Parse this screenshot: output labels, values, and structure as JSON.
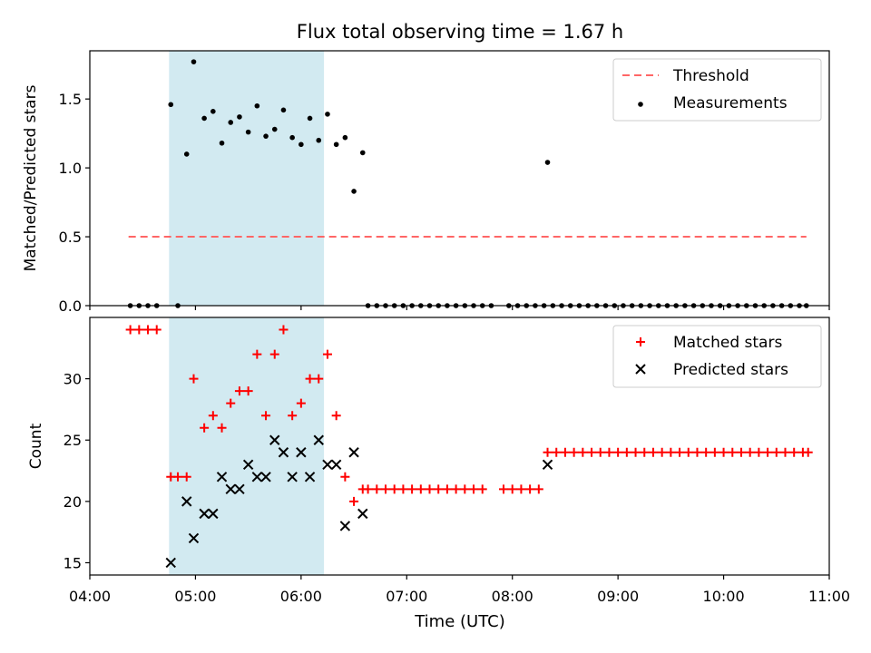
{
  "chart_data": {
    "type": "scatter",
    "title": "Flux total observing time = 1.67 h",
    "xlabel": "Time (UTC)",
    "xlim": [
      "04:00",
      "11:00"
    ],
    "xticks": [
      "04:00",
      "05:00",
      "06:00",
      "07:00",
      "08:00",
      "09:00",
      "10:00",
      "11:00"
    ],
    "shaded_interval": [
      "04:45",
      "06:13"
    ],
    "shade_color": "#add8e6",
    "panels": [
      {
        "ylabel": "Matched/Predicted stars",
        "ylim": [
          0,
          1.85
        ],
        "yticks": [
          "0.0",
          "0.5",
          "1.0",
          "1.5"
        ],
        "legend_position": "upper-right",
        "series": [
          {
            "name": "Threshold",
            "kind": "dashed-line",
            "color": "#ff6666",
            "points": [
              [
                "04:22",
                0.5
              ],
              [
                "10:47",
                0.5
              ]
            ]
          },
          {
            "name": "Measurements",
            "kind": "dot",
            "color": "#000000",
            "points": [
              [
                "04:23",
                0.0
              ],
              [
                "04:28",
                0.0
              ],
              [
                "04:33",
                0.0
              ],
              [
                "04:38",
                0.0
              ],
              [
                "04:46",
                1.46
              ],
              [
                "04:50",
                0.0
              ],
              [
                "04:55",
                1.1
              ],
              [
                "04:59",
                1.77
              ],
              [
                "05:05",
                1.36
              ],
              [
                "05:10",
                1.41
              ],
              [
                "05:15",
                1.18
              ],
              [
                "05:20",
                1.33
              ],
              [
                "05:25",
                1.37
              ],
              [
                "05:30",
                1.26
              ],
              [
                "05:35",
                1.45
              ],
              [
                "05:40",
                1.23
              ],
              [
                "05:45",
                1.28
              ],
              [
                "05:50",
                1.42
              ],
              [
                "05:55",
                1.22
              ],
              [
                "06:00",
                1.17
              ],
              [
                "06:05",
                1.36
              ],
              [
                "06:10",
                1.2
              ],
              [
                "06:15",
                1.39
              ],
              [
                "06:20",
                1.17
              ],
              [
                "06:25",
                1.22
              ],
              [
                "06:30",
                0.83
              ],
              [
                "06:35",
                1.11
              ],
              [
                "06:38",
                0.0
              ],
              [
                "06:43",
                0.0
              ],
              [
                "06:48",
                0.0
              ],
              [
                "06:53",
                0.0
              ],
              [
                "06:58",
                0.0
              ],
              [
                "07:03",
                0.0
              ],
              [
                "07:08",
                0.0
              ],
              [
                "07:13",
                0.0
              ],
              [
                "07:18",
                0.0
              ],
              [
                "07:23",
                0.0
              ],
              [
                "07:28",
                0.0
              ],
              [
                "07:33",
                0.0
              ],
              [
                "07:38",
                0.0
              ],
              [
                "07:43",
                0.0
              ],
              [
                "07:48",
                0.0
              ],
              [
                "07:58",
                0.0
              ],
              [
                "08:03",
                0.0
              ],
              [
                "08:08",
                0.0
              ],
              [
                "08:13",
                0.0
              ],
              [
                "08:18",
                0.0
              ],
              [
                "08:20",
                1.04
              ],
              [
                "08:23",
                0.0
              ],
              [
                "08:28",
                0.0
              ],
              [
                "08:33",
                0.0
              ],
              [
                "08:38",
                0.0
              ],
              [
                "08:43",
                0.0
              ],
              [
                "08:48",
                0.0
              ],
              [
                "08:53",
                0.0
              ],
              [
                "08:58",
                0.0
              ],
              [
                "09:03",
                0.0
              ],
              [
                "09:08",
                0.0
              ],
              [
                "09:13",
                0.0
              ],
              [
                "09:18",
                0.0
              ],
              [
                "09:23",
                0.0
              ],
              [
                "09:28",
                0.0
              ],
              [
                "09:33",
                0.0
              ],
              [
                "09:38",
                0.0
              ],
              [
                "09:43",
                0.0
              ],
              [
                "09:48",
                0.0
              ],
              [
                "09:53",
                0.0
              ],
              [
                "09:58",
                0.0
              ],
              [
                "10:03",
                0.0
              ],
              [
                "10:08",
                0.0
              ],
              [
                "10:13",
                0.0
              ],
              [
                "10:18",
                0.0
              ],
              [
                "10:23",
                0.0
              ],
              [
                "10:28",
                0.0
              ],
              [
                "10:33",
                0.0
              ],
              [
                "10:38",
                0.0
              ],
              [
                "10:43",
                0.0
              ],
              [
                "10:47",
                0.0
              ]
            ]
          }
        ]
      },
      {
        "ylabel": "Count",
        "ylim": [
          14,
          35
        ],
        "yticks": [
          "15",
          "20",
          "25",
          "30"
        ],
        "legend_position": "upper-right",
        "series": [
          {
            "name": "Matched stars",
            "kind": "plus",
            "color": "#ff0000",
            "points": [
              [
                "04:23",
                34
              ],
              [
                "04:28",
                34
              ],
              [
                "04:33",
                34
              ],
              [
                "04:38",
                34
              ],
              [
                "04:46",
                22
              ],
              [
                "04:50",
                22
              ],
              [
                "04:55",
                22
              ],
              [
                "04:59",
                30
              ],
              [
                "05:05",
                26
              ],
              [
                "05:10",
                27
              ],
              [
                "05:15",
                26
              ],
              [
                "05:20",
                28
              ],
              [
                "05:25",
                29
              ],
              [
                "05:30",
                29
              ],
              [
                "05:35",
                32
              ],
              [
                "05:40",
                27
              ],
              [
                "05:45",
                32
              ],
              [
                "05:50",
                34
              ],
              [
                "05:55",
                27
              ],
              [
                "06:00",
                28
              ],
              [
                "06:05",
                30
              ],
              [
                "06:10",
                30
              ],
              [
                "06:15",
                32
              ],
              [
                "06:20",
                27
              ],
              [
                "06:25",
                22
              ],
              [
                "06:30",
                20
              ],
              [
                "06:35",
                21
              ],
              [
                "06:38",
                21
              ],
              [
                "06:43",
                21
              ],
              [
                "06:48",
                21
              ],
              [
                "06:53",
                21
              ],
              [
                "06:58",
                21
              ],
              [
                "07:03",
                21
              ],
              [
                "07:08",
                21
              ],
              [
                "07:13",
                21
              ],
              [
                "07:18",
                21
              ],
              [
                "07:23",
                21
              ],
              [
                "07:28",
                21
              ],
              [
                "07:33",
                21
              ],
              [
                "07:38",
                21
              ],
              [
                "07:43",
                21
              ],
              [
                "07:55",
                21
              ],
              [
                "08:00",
                21
              ],
              [
                "08:05",
                21
              ],
              [
                "08:10",
                21
              ],
              [
                "08:15",
                21
              ],
              [
                "08:20",
                24
              ],
              [
                "08:25",
                24
              ],
              [
                "08:30",
                24
              ],
              [
                "08:35",
                24
              ],
              [
                "08:40",
                24
              ],
              [
                "08:45",
                24
              ],
              [
                "08:50",
                24
              ],
              [
                "08:55",
                24
              ],
              [
                "09:00",
                24
              ],
              [
                "09:05",
                24
              ],
              [
                "09:10",
                24
              ],
              [
                "09:15",
                24
              ],
              [
                "09:20",
                24
              ],
              [
                "09:25",
                24
              ],
              [
                "09:30",
                24
              ],
              [
                "09:35",
                24
              ],
              [
                "09:40",
                24
              ],
              [
                "09:45",
                24
              ],
              [
                "09:50",
                24
              ],
              [
                "09:55",
                24
              ],
              [
                "10:00",
                24
              ],
              [
                "10:05",
                24
              ],
              [
                "10:10",
                24
              ],
              [
                "10:15",
                24
              ],
              [
                "10:20",
                24
              ],
              [
                "10:25",
                24
              ],
              [
                "10:30",
                24
              ],
              [
                "10:35",
                24
              ],
              [
                "10:40",
                24
              ],
              [
                "10:45",
                24
              ],
              [
                "10:48",
                24
              ]
            ]
          },
          {
            "name": "Predicted stars",
            "kind": "x",
            "color": "#000000",
            "points": [
              [
                "04:46",
                15
              ],
              [
                "04:55",
                20
              ],
              [
                "04:59",
                17
              ],
              [
                "05:05",
                19
              ],
              [
                "05:10",
                19
              ],
              [
                "05:15",
                22
              ],
              [
                "05:20",
                21
              ],
              [
                "05:25",
                21
              ],
              [
                "05:30",
                23
              ],
              [
                "05:35",
                22
              ],
              [
                "05:40",
                22
              ],
              [
                "05:45",
                25
              ],
              [
                "05:50",
                24
              ],
              [
                "05:55",
                22
              ],
              [
                "06:00",
                24
              ],
              [
                "06:05",
                22
              ],
              [
                "06:10",
                25
              ],
              [
                "06:15",
                23
              ],
              [
                "06:20",
                23
              ],
              [
                "06:25",
                18
              ],
              [
                "06:30",
                24
              ],
              [
                "06:35",
                19
              ],
              [
                "08:20",
                23
              ]
            ]
          }
        ]
      }
    ]
  }
}
